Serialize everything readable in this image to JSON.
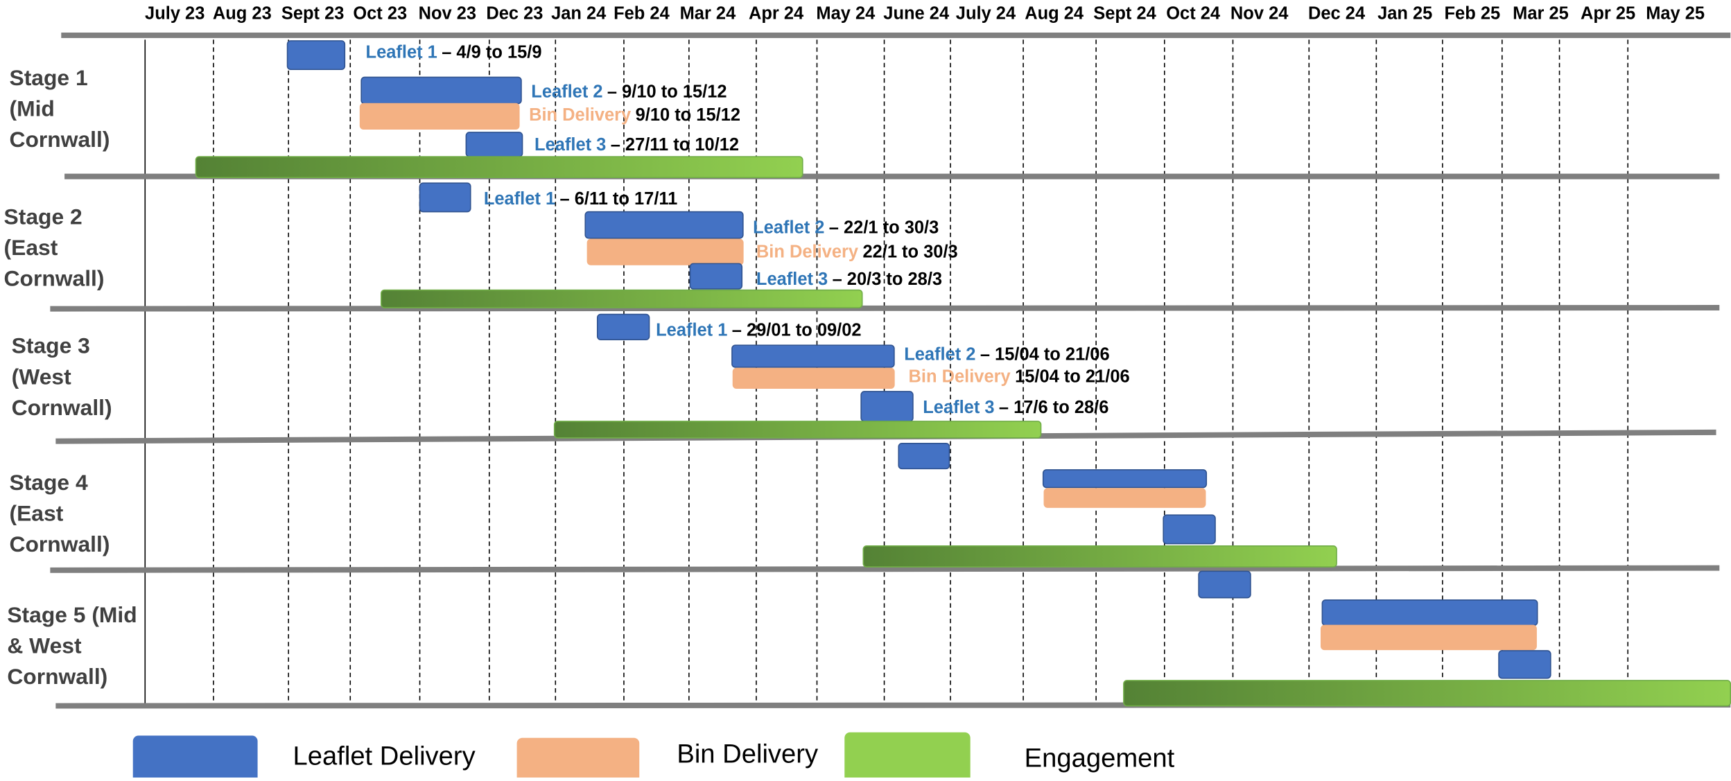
{
  "months": [
    "July 23",
    "Aug 23",
    "Sept 23",
    "Oct 23",
    "Nov 23",
    "Dec 23",
    "Jan 24",
    "Feb 24",
    "Mar 24",
    "Apr 24",
    "May 24",
    "June 24",
    "July 24",
    "Aug 24",
    "Sept 24",
    "Oct 24",
    "Nov 24",
    "Dec 24",
    "Jan 25",
    "Feb 25",
    "Mar 25",
    "Apr 25",
    "May 25"
  ],
  "stages": [
    {
      "label": [
        "Stage 1",
        "(Mid",
        "Cornwall)"
      ],
      "items": [
        {
          "name": "Leaflet 1",
          "detail": "– 4/9 to 15/9"
        },
        {
          "name": "Leaflet 2",
          "detail": "– 9/10 to 15/12"
        },
        {
          "name": "Bin Delivery",
          "detail": "9/10 to 15/12"
        },
        {
          "name": "Leaflet 3",
          "detail": "– 27/11 to 10/12"
        }
      ]
    },
    {
      "label": [
        "Stage 2",
        "(East",
        "Cornwall)"
      ],
      "items": [
        {
          "name": "Leaflet 1",
          "detail": "– 6/11 to 17/11"
        },
        {
          "name": "Leaflet 2",
          "detail": "– 22/1 to 30/3"
        },
        {
          "name": "Bin Delivery",
          "detail": "22/1 to 30/3"
        },
        {
          "name": "Leaflet 3",
          "detail": "– 20/3 to 28/3"
        }
      ]
    },
    {
      "label": [
        "Stage 3",
        "(West",
        "Cornwall)"
      ],
      "items": [
        {
          "name": "Leaflet 1",
          "detail": "– 29/01 to 09/02"
        },
        {
          "name": "Leaflet 2",
          "detail": "– 15/04 to 21/06"
        },
        {
          "name": "Bin Delivery",
          "detail": "15/04 to 21/06"
        },
        {
          "name": "Leaflet 3",
          "detail": "– 17/6 to 28/6"
        }
      ]
    },
    {
      "label": [
        "Stage 4",
        "(East",
        "Cornwall)"
      ],
      "items": []
    },
    {
      "label": [
        "Stage 5 (Mid",
        "& West",
        "Cornwall)"
      ],
      "items": []
    }
  ],
  "legend": [
    "Leaflet Delivery",
    "Bin Delivery",
    "Engagement"
  ]
}
